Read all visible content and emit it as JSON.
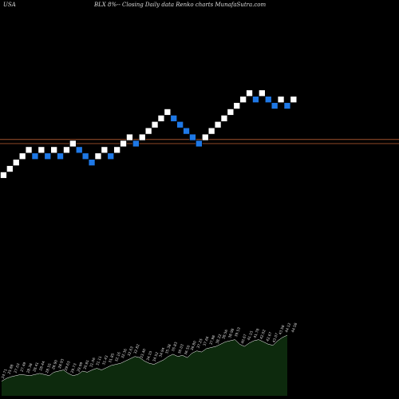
{
  "header": {
    "country": "USA",
    "caption": "BLX  8%-- Closing Daily data  Renko  charts MunafaSutra.com"
  },
  "colors": {
    "background": "#000000",
    "up_brick": "#ffffff",
    "down_brick": "#1e78e6",
    "brick_border": "#000000",
    "level_line": "#a0522d",
    "volume_fill": "#0d2a0d",
    "volume_stroke": "#ffffff",
    "volume_label": "#dddddd"
  },
  "chart_data": [
    {
      "type": "renko",
      "title": "BLX  8%-- Closing Daily data  Renko  charts MunafaSutra.com",
      "brick_size_pct": 8,
      "ylim": [
        0,
        13
      ],
      "levels": [
        5.6,
        4.95
      ],
      "bricks": [
        {
          "dir": "up",
          "level": 0
        },
        {
          "dir": "up",
          "level": 1
        },
        {
          "dir": "up",
          "level": 2
        },
        {
          "dir": "up",
          "level": 3
        },
        {
          "dir": "up",
          "level": 4
        },
        {
          "dir": "down",
          "level": 3
        },
        {
          "dir": "up",
          "level": 4
        },
        {
          "dir": "down",
          "level": 3
        },
        {
          "dir": "up",
          "level": 4
        },
        {
          "dir": "down",
          "level": 3
        },
        {
          "dir": "up",
          "level": 4
        },
        {
          "dir": "up",
          "level": 5
        },
        {
          "dir": "down",
          "level": 4
        },
        {
          "dir": "down",
          "level": 3
        },
        {
          "dir": "down",
          "level": 2
        },
        {
          "dir": "up",
          "level": 3
        },
        {
          "dir": "up",
          "level": 4
        },
        {
          "dir": "down",
          "level": 3
        },
        {
          "dir": "up",
          "level": 4
        },
        {
          "dir": "up",
          "level": 5
        },
        {
          "dir": "up",
          "level": 6
        },
        {
          "dir": "down",
          "level": 5
        },
        {
          "dir": "up",
          "level": 6
        },
        {
          "dir": "up",
          "level": 7
        },
        {
          "dir": "up",
          "level": 8
        },
        {
          "dir": "up",
          "level": 9
        },
        {
          "dir": "up",
          "level": 10
        },
        {
          "dir": "down",
          "level": 9
        },
        {
          "dir": "down",
          "level": 8
        },
        {
          "dir": "down",
          "level": 7
        },
        {
          "dir": "down",
          "level": 6
        },
        {
          "dir": "down",
          "level": 5
        },
        {
          "dir": "up",
          "level": 6
        },
        {
          "dir": "up",
          "level": 7
        },
        {
          "dir": "up",
          "level": 8
        },
        {
          "dir": "up",
          "level": 9
        },
        {
          "dir": "up",
          "level": 10
        },
        {
          "dir": "up",
          "level": 11
        },
        {
          "dir": "up",
          "level": 12
        },
        {
          "dir": "up",
          "level": 13
        },
        {
          "dir": "down",
          "level": 12
        },
        {
          "dir": "up",
          "level": 13
        },
        {
          "dir": "down",
          "level": 12
        },
        {
          "dir": "down",
          "level": 11
        },
        {
          "dir": "up",
          "level": 12
        },
        {
          "dir": "down",
          "level": 11
        },
        {
          "dir": "up",
          "level": 12
        }
      ]
    },
    {
      "type": "area",
      "series_label_values": [
        "24.71",
        "25.88",
        "27.03",
        "27.49",
        "28.38",
        "28.41",
        "28.44",
        "28.55",
        "28.90",
        "28.93",
        "29.63",
        "29.73",
        "29.99",
        "30.81",
        "31.06",
        "31.11",
        "31.43",
        "31.85",
        "32.16",
        "32.36",
        "32.63",
        "32.82",
        "33.40",
        "34.15",
        "34.52",
        "34.94",
        "35.38",
        "35.83",
        "36.03",
        "36.50",
        "36.80",
        "37.25",
        "37.66",
        "37.98",
        "38.22",
        "38.56",
        "38.98",
        "39.53",
        "40.67",
        "41.15",
        "41.78",
        "42.02",
        "42.67",
        "43.07",
        "43.58",
        "44.12",
        "44.58"
      ],
      "values": [
        26,
        31,
        34,
        36,
        38,
        37,
        36,
        38,
        40,
        38,
        36,
        42,
        44,
        46,
        40,
        36,
        38,
        44,
        42,
        46,
        49,
        46,
        50,
        54,
        56,
        58,
        62,
        66,
        70,
        68,
        62,
        58,
        56,
        60,
        64,
        70,
        74,
        70,
        72,
        68,
        76,
        80,
        78,
        84,
        86,
        88,
        92,
        96,
        98,
        100,
        92,
        88,
        94,
        98,
        100,
        96,
        92,
        90,
        98,
        104,
        108
      ]
    }
  ]
}
